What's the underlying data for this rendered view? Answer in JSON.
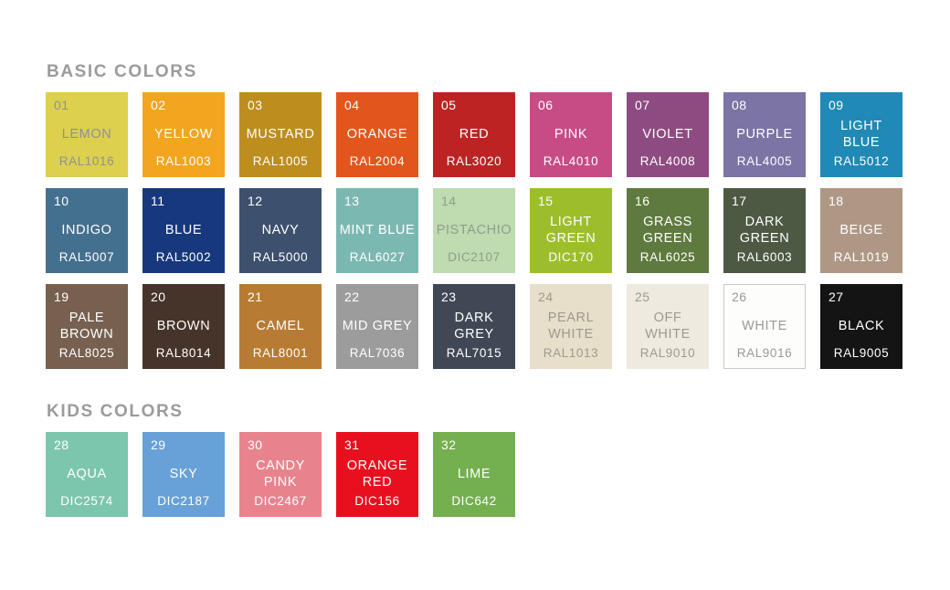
{
  "page": {
    "background": "#FFFFFF",
    "default_text_color": "#FFFFFF",
    "heading_color": "#9B9B9B"
  },
  "sections": [
    {
      "title": "BASIC COLORS",
      "swatches": [
        {
          "number": "01",
          "name": "LEMON",
          "code": "RAL1016",
          "bg": "#DCD04E",
          "text_color": "#8F9094"
        },
        {
          "number": "02",
          "name": "YELLOW",
          "code": "RAL1003",
          "bg": "#F2A51F"
        },
        {
          "number": "03",
          "name": "MUSTARD",
          "code": "RAL1005",
          "bg": "#BD8E1E"
        },
        {
          "number": "04",
          "name": "ORANGE",
          "code": "RAL2004",
          "bg": "#E2561D"
        },
        {
          "number": "05",
          "name": "RED",
          "code": "RAL3020",
          "bg": "#BC2424"
        },
        {
          "number": "06",
          "name": "PINK",
          "code": "RAL4010",
          "bg": "#C74C86"
        },
        {
          "number": "07",
          "name": "VIOLET",
          "code": "RAL4008",
          "bg": "#8E4B82"
        },
        {
          "number": "08",
          "name": "PURPLE",
          "code": "RAL4005",
          "bg": "#7B74A5"
        },
        {
          "number": "09",
          "name": "LIGHT BLUE",
          "code": "RAL5012",
          "bg": "#2089B5"
        },
        {
          "number": "10",
          "name": "INDIGO",
          "code": "RAL5007",
          "bg": "#44708F"
        },
        {
          "number": "11",
          "name": "BLUE",
          "code": "RAL5002",
          "bg": "#17387C"
        },
        {
          "number": "12",
          "name": "NAVY",
          "code": "RAL5000",
          "bg": "#3D506E"
        },
        {
          "number": "13",
          "name": "MINT BLUE",
          "code": "RAL6027",
          "bg": "#7CB8B2"
        },
        {
          "number": "14",
          "name": "PISTACHIO",
          "code": "DIC2107",
          "bg": "#BEDCAF",
          "text_color": "#929B90"
        },
        {
          "number": "15",
          "name": "LIGHT\nGREEN",
          "code": "DIC170",
          "bg": "#9DBE2B"
        },
        {
          "number": "16",
          "name": "GRASS\nGREEN",
          "code": "RAL6025",
          "bg": "#5F7A3E"
        },
        {
          "number": "17",
          "name": "DARK\nGREEN",
          "code": "RAL6003",
          "bg": "#4D5943"
        },
        {
          "number": "18",
          "name": "BEIGE",
          "code": "RAL1019",
          "bg": "#AE9885"
        },
        {
          "number": "19",
          "name": "PALE\nBROWN",
          "code": "RAL8025",
          "bg": "#77604F"
        },
        {
          "number": "20",
          "name": "BROWN",
          "code": "RAL8014",
          "bg": "#46342A"
        },
        {
          "number": "21",
          "name": "CAMEL",
          "code": "RAL8001",
          "bg": "#B87B33"
        },
        {
          "number": "22",
          "name": "MID GREY",
          "code": "RAL7036",
          "bg": "#9C9C9C"
        },
        {
          "number": "23",
          "name": "DARK GREY",
          "code": "RAL7015",
          "bg": "#414855"
        },
        {
          "number": "24",
          "name": "PEARL\nWHITE",
          "code": "RAL1013",
          "bg": "#E7DFC9",
          "text_color": "#9C9A90"
        },
        {
          "number": "25",
          "name": "OFF\nWHITE",
          "code": "RAL9010",
          "bg": "#EEEADF",
          "text_color": "#9C9A90"
        },
        {
          "number": "26",
          "name": "WHITE",
          "code": "RAL9016",
          "bg": "#FDFDFB",
          "text_color": "#999999",
          "border": "#C9C9C5"
        },
        {
          "number": "27",
          "name": "BLACK",
          "code": "RAL9005",
          "bg": "#141414"
        }
      ]
    },
    {
      "title": "KIDS COLORS",
      "swatches": [
        {
          "number": "28",
          "name": "AQUA",
          "code": "DIC2574",
          "bg": "#7CC6AE"
        },
        {
          "number": "29",
          "name": "SKY",
          "code": "DIC2187",
          "bg": "#67A1D7"
        },
        {
          "number": "30",
          "name": "CANDY\nPINK",
          "code": "DIC2467",
          "bg": "#E8838E"
        },
        {
          "number": "31",
          "name": "ORANGE\nRED",
          "code": "DIC156",
          "bg": "#E8101E"
        },
        {
          "number": "32",
          "name": "LIME",
          "code": "DIC642",
          "bg": "#74AF50"
        }
      ]
    }
  ]
}
